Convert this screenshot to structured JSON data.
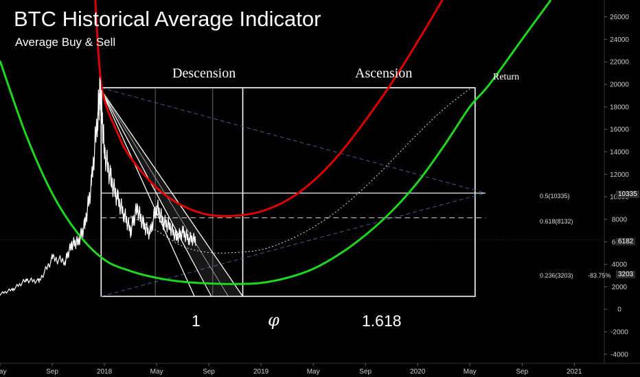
{
  "header": {
    "title": "BTC Historical Average Indicator",
    "subtitle": "Average Buy & Sell"
  },
  "annotations": {
    "descension": "Descension",
    "ascension": "Ascension",
    "return": "Return",
    "ratio_1": "1",
    "ratio_phi": "φ",
    "ratio_1618": "1.618"
  },
  "price_tags": {
    "level_05": "10335",
    "current": "6182",
    "level_0236": "3203",
    "change_pct": "-83.75%"
  },
  "colors": {
    "background": "#000000",
    "upper_curve": "#e00000",
    "lower_curve": "#1ed81e",
    "box": "#ffffff",
    "dashed_trend": "#4a5a8a"
  },
  "chart_data": {
    "type": "line",
    "y_axis": {
      "position": "right",
      "ticks": [
        26000,
        24000,
        22000,
        20000,
        18000,
        16000,
        14000,
        12000,
        10000,
        8000,
        6000,
        4000,
        2000,
        0,
        -2000,
        -4000
      ],
      "tick_labels": [
        "26000",
        "24000",
        "22000",
        "20000",
        "18000",
        "16000",
        "14000",
        "12000",
        "10000",
        "8000",
        "6000",
        "4000",
        "2000",
        "0",
        "-2000",
        "-4000"
      ],
      "range": [
        -4800,
        27500
      ]
    },
    "x_axis": {
      "tick_labels": [
        "May",
        "Sep",
        "2018",
        "May",
        "Sep",
        "2019",
        "May",
        "Sep",
        "2020",
        "May",
        "Sep",
        "2021"
      ],
      "tick_months": [
        0,
        4,
        8,
        12,
        16,
        20,
        24,
        28,
        32,
        36,
        40,
        44
      ],
      "range_months": [
        0,
        46.3
      ],
      "start": "2017-05"
    },
    "fib_levels": [
      {
        "label": "0.5(10335)",
        "value": 10335,
        "style": "solid"
      },
      {
        "label": "0.618(8132)",
        "value": 8132,
        "style": "dashed"
      },
      {
        "label": "0.236(3203)",
        "value": 3203,
        "style": "none"
      }
    ],
    "series": [
      {
        "name": "",
        "kind": "upper-parabola",
        "color": "#e00000",
        "points": [
          [
            7.3,
            27500
          ],
          [
            7.8,
            19700
          ],
          [
            9,
            15700
          ],
          [
            10,
            13500
          ],
          [
            12,
            10800
          ],
          [
            14,
            9200
          ],
          [
            16,
            8400
          ],
          [
            18,
            8320
          ],
          [
            20,
            8700
          ],
          [
            22,
            9700
          ],
          [
            24,
            11400
          ],
          [
            26,
            13800
          ],
          [
            28,
            16800
          ],
          [
            30,
            20100
          ],
          [
            32,
            23800
          ],
          [
            33.9,
            27500
          ]
        ]
      },
      {
        "name": "",
        "kind": "lower-parabola",
        "color": "#1ed81e",
        "points": [
          [
            0,
            22100
          ],
          [
            2,
            15500
          ],
          [
            4,
            10300
          ],
          [
            6,
            6700
          ],
          [
            8,
            4400
          ],
          [
            10,
            3400
          ],
          [
            12,
            2800
          ],
          [
            14,
            2450
          ],
          [
            16,
            2300
          ],
          [
            18,
            2250
          ],
          [
            20,
            2350
          ],
          [
            22,
            2800
          ],
          [
            24,
            3600
          ],
          [
            26,
            4900
          ],
          [
            28,
            6600
          ],
          [
            30,
            8700
          ],
          [
            32,
            11300
          ],
          [
            34,
            14500
          ],
          [
            36,
            18000
          ],
          [
            37.5,
            20000
          ],
          [
            40,
            24000
          ],
          [
            42.2,
            27500
          ]
        ]
      },
      {
        "name": "",
        "kind": "projection-dotted",
        "color": "#ffffff",
        "points": [
          [
            10,
            8300
          ],
          [
            12,
            7000
          ],
          [
            14,
            5600
          ],
          [
            16,
            5050
          ],
          [
            18,
            5050
          ],
          [
            20,
            5300
          ],
          [
            22,
            6100
          ],
          [
            24,
            7300
          ],
          [
            26,
            8900
          ],
          [
            28,
            10900
          ],
          [
            30,
            13200
          ],
          [
            32,
            15600
          ],
          [
            34,
            17800
          ],
          [
            36,
            19600
          ]
        ]
      },
      {
        "name": "",
        "kind": "btc-price",
        "color": "#ffffff",
        "points": [
          [
            0,
            1350
          ],
          [
            1,
            1800
          ],
          [
            2,
            2600
          ],
          [
            3,
            2500
          ],
          [
            4,
            4500
          ],
          [
            5,
            4300
          ],
          [
            5.5,
            5800
          ],
          [
            6,
            6000
          ],
          [
            6.5,
            7500
          ],
          [
            7,
            11000
          ],
          [
            7.5,
            17500
          ],
          [
            7.7,
            19500
          ],
          [
            8,
            14000
          ],
          [
            8.5,
            11500
          ],
          [
            9,
            9800
          ],
          [
            9.5,
            8500
          ],
          [
            10,
            7000
          ],
          [
            10.5,
            9000
          ],
          [
            11,
            7500
          ],
          [
            11.5,
            6700
          ],
          [
            12,
            9200
          ],
          [
            12.5,
            7800
          ],
          [
            13,
            7400
          ],
          [
            13.5,
            6400
          ],
          [
            14,
            6800
          ],
          [
            14.5,
            6300
          ],
          [
            15,
            6182
          ]
        ]
      }
    ]
  }
}
